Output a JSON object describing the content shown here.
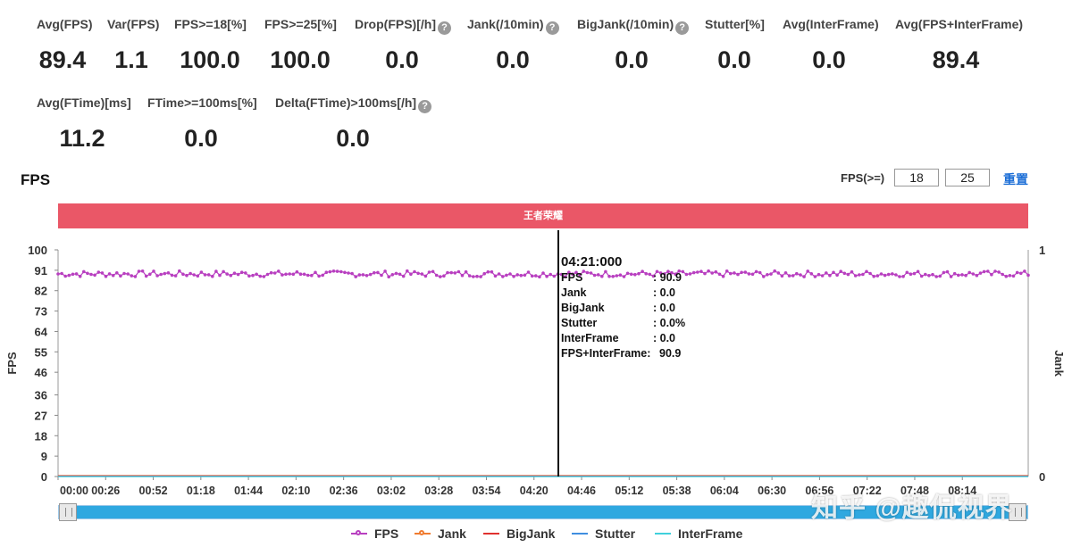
{
  "stats_row1": [
    {
      "label": "Avg(FPS)",
      "value": "89.4",
      "help": false
    },
    {
      "label": "Var(FPS)",
      "value": "1.1",
      "help": false
    },
    {
      "label": "FPS>=18[%]",
      "value": "100.0",
      "help": false
    },
    {
      "label": "FPS>=25[%]",
      "value": "100.0",
      "help": false
    },
    {
      "label": "Drop(FPS)[/h]",
      "value": "0.0",
      "help": true
    },
    {
      "label": "Jank(/10min)",
      "value": "0.0",
      "help": true
    },
    {
      "label": "BigJank(/10min)",
      "value": "0.0",
      "help": true
    },
    {
      "label": "Stutter[%]",
      "value": "0.0",
      "help": false
    },
    {
      "label": "Avg(InterFrame)",
      "value": "0.0",
      "help": false
    },
    {
      "label": "Avg(FPS+InterFrame)",
      "value": "89.4",
      "help": false
    }
  ],
  "stats_row2": [
    {
      "label": "Avg(FTime)[ms]",
      "value": "11.2",
      "help": false
    },
    {
      "label": "FTime>=100ms[%]",
      "value": "0.0",
      "help": false
    },
    {
      "label": "Delta(FTime)>100ms[/h]",
      "value": "0.0",
      "help": true
    }
  ],
  "help_glyph": "?",
  "chart_header": {
    "title": "FPS",
    "threshold_label": "FPS(>=)",
    "threshold_low": "18",
    "threshold_high": "25",
    "reset_label": "重置"
  },
  "banner_text": "王者荣耀",
  "legend": [
    {
      "name": "FPS",
      "color": "#b83fc0",
      "marker": true
    },
    {
      "name": "Jank",
      "color": "#f07c30",
      "marker": true
    },
    {
      "name": "BigJank",
      "color": "#e0312e",
      "marker": false
    },
    {
      "name": "Stutter",
      "color": "#3f8ee0",
      "marker": false
    },
    {
      "name": "InterFrame",
      "color": "#3fd0dc",
      "marker": false
    }
  ],
  "watermark": "知乎 @趣侃视界",
  "chart_data": {
    "type": "line",
    "title": "",
    "ylabel": "FPS",
    "y2label": "Jank",
    "ylim": [
      0,
      100
    ],
    "yticks": [
      "0",
      "9",
      "18",
      "27",
      "36",
      "46",
      "55",
      "64",
      "73",
      "82",
      "91",
      "100"
    ],
    "y2lim": [
      0,
      1
    ],
    "y2ticks": [
      "0",
      "1"
    ],
    "xticks": [
      "00:00",
      "00:26",
      "00:52",
      "01:18",
      "01:44",
      "02:10",
      "02:36",
      "03:02",
      "03:28",
      "03:54",
      "04:20",
      "04:46",
      "05:12",
      "05:38",
      "06:04",
      "06:30",
      "06:56",
      "07:22",
      "07:48",
      "08:14"
    ],
    "x_range_seconds": [
      0,
      530
    ],
    "series": [
      {
        "name": "FPS",
        "color": "#b83fc0",
        "mean": 89.4,
        "min": 87,
        "max": 91.5
      },
      {
        "name": "Jank",
        "color": "#f07c30",
        "value": 0
      },
      {
        "name": "BigJank",
        "color": "#e0312e",
        "value": 0
      },
      {
        "name": "Stutter",
        "color": "#3f8ee0",
        "value": 0
      },
      {
        "name": "InterFrame",
        "color": "#3fd0dc",
        "value": 0
      }
    ],
    "cursor": {
      "time": "04:21:000",
      "rows": [
        {
          "key": "FPS",
          "value": "90.9"
        },
        {
          "key": "Jank",
          "value": "0.0"
        },
        {
          "key": "BigJank",
          "value": "0.0"
        },
        {
          "key": "Stutter",
          "value": "0.0%"
        },
        {
          "key": "InterFrame",
          "value": "0.0"
        },
        {
          "key": "FPS+InterFrame",
          "value": "90.9"
        }
      ]
    }
  }
}
